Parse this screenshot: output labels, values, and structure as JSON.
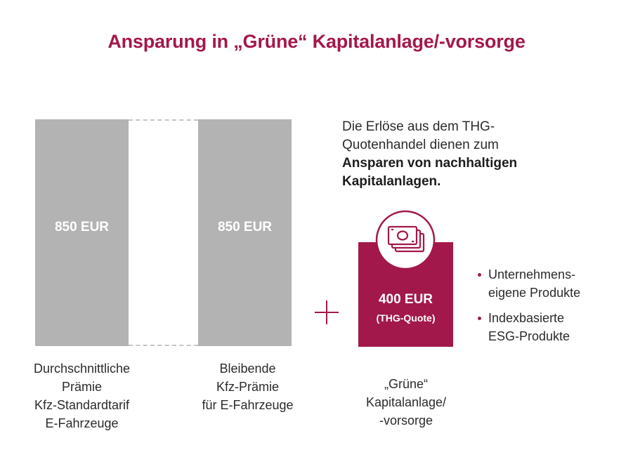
{
  "title": "Ansparung in „Grüne“ Kapitalanlage/-vorsorge",
  "bars": [
    {
      "value": "850 EUR",
      "caption": [
        "Durchschnittliche",
        "Prämie",
        "Kfz-Standardtarif",
        "E-Fahrzeuge"
      ]
    },
    {
      "value": "850 EUR",
      "caption": [
        "Bleibende",
        "Kfz-Prämie",
        "für E-Fahrzeuge"
      ]
    }
  ],
  "green": {
    "value": "400 EUR",
    "sub": "(THG-Quote)",
    "caption": [
      "„Grüne“",
      "Kapitalanlage/",
      "-vorsorge"
    ],
    "icon": "money-bills-icon"
  },
  "description": {
    "line1": "Die Erlöse aus dem THG-",
    "line2": "Quotenhandel dienen zum",
    "bold1": "Ansparen von nachhaltigen",
    "bold2": "Kapitalanlagen."
  },
  "bullets": [
    {
      "line1": "Unternehmens-",
      "line2": "eigene Produkte"
    },
    {
      "line1": "Indexbasierte",
      "line2": "ESG-Produkte"
    }
  ],
  "colors": {
    "accent": "#a3184a",
    "bar": "#b3b3b3"
  }
}
